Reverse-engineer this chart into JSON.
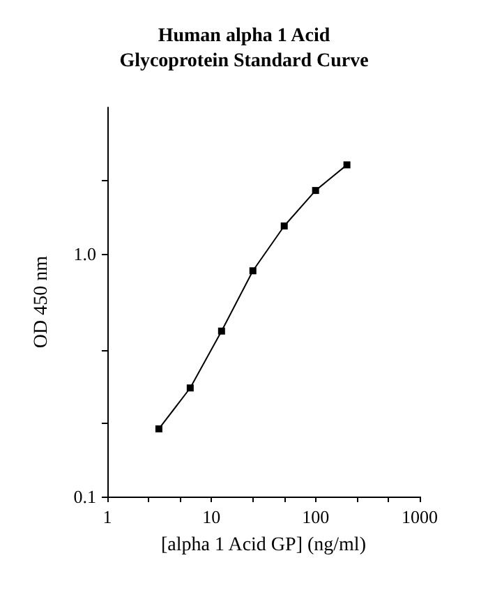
{
  "chart_data": {
    "type": "line",
    "title": "Human alpha 1 Acid\nGlycoprotein Standard Curve",
    "xlabel": "[alpha 1 Acid GP] (ng/ml)",
    "ylabel": "OD 450 nm",
    "x": [
      3.125,
      6.25,
      12.5,
      25,
      50,
      100,
      200
    ],
    "series": [
      {
        "color": "#000000",
        "values": [
          0.19,
          0.28,
          0.48,
          0.85,
          1.3,
          1.82,
          2.32
        ]
      }
    ],
    "log": "xy",
    "xlim": [
      1,
      1000
    ],
    "ylim": [
      0.1,
      4
    ],
    "xticks": [
      1,
      {
        "value": 2.5,
        "label": null
      },
      {
        "value": 5,
        "label": null
      },
      10,
      {
        "value": 25,
        "label": null
      },
      {
        "value": 50,
        "label": null
      },
      100,
      {
        "value": 250,
        "label": null
      },
      {
        "value": 500,
        "label": null
      },
      1000
    ],
    "yticks": [
      0.1,
      {
        "value": 0.2,
        "label": null
      },
      {
        "value": 0.4,
        "label": null
      },
      {
        "value": 1,
        "label": "1.0"
      },
      {
        "value": 2,
        "label": null
      }
    ],
    "grid": false,
    "marker": "square",
    "line_style": "solid"
  }
}
